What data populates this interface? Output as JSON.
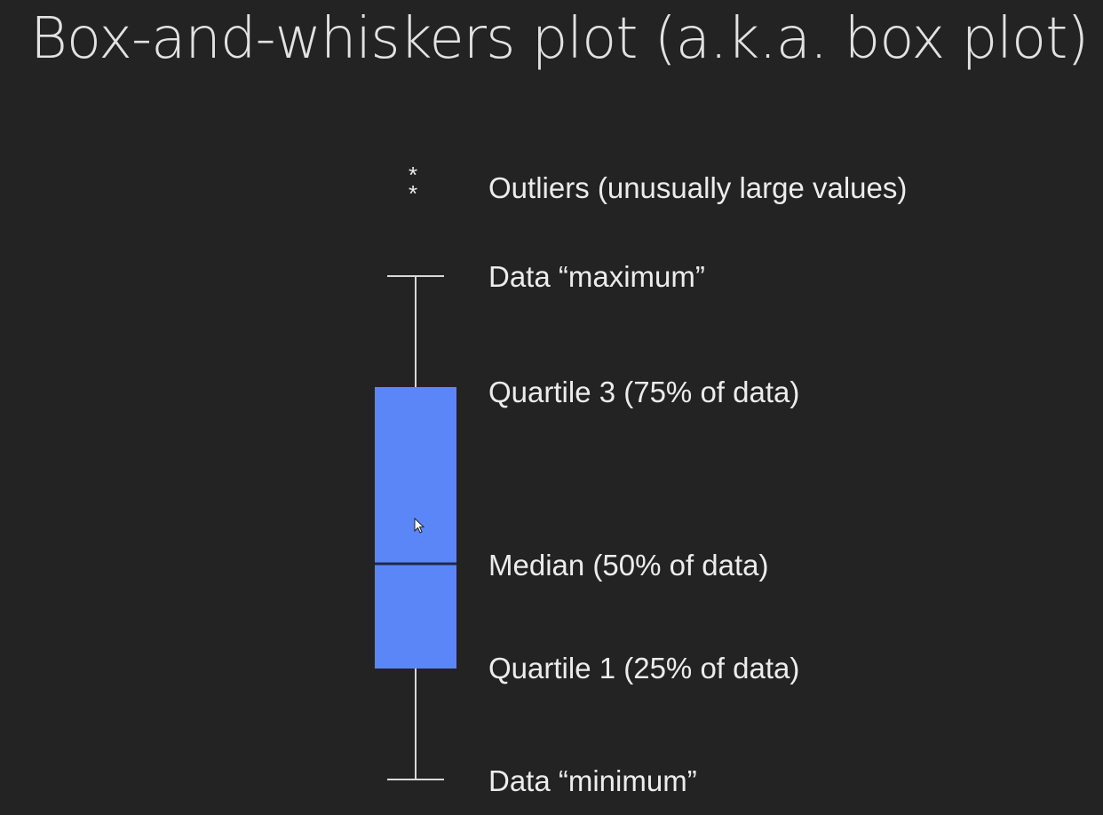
{
  "title": "Box-and-whiskers plot (a.k.a. box plot)",
  "outlier_markers": [
    "*",
    "*"
  ],
  "labels": {
    "outliers": "Outliers (unusually large values)",
    "maximum": "Data “maximum”",
    "q3": "Quartile 3 (75% of data)",
    "median": "Median (50% of data)",
    "q1": "Quartile 1 (25% of data)",
    "minimum": "Data “minimum”"
  },
  "colors": {
    "background": "#232323",
    "box_fill": "#5b86f7",
    "median_line": "#1f2a44",
    "whisker": "#d8d8d8",
    "text": "#ececec"
  },
  "icons": {
    "cursor": "mouse-pointer-icon"
  }
}
